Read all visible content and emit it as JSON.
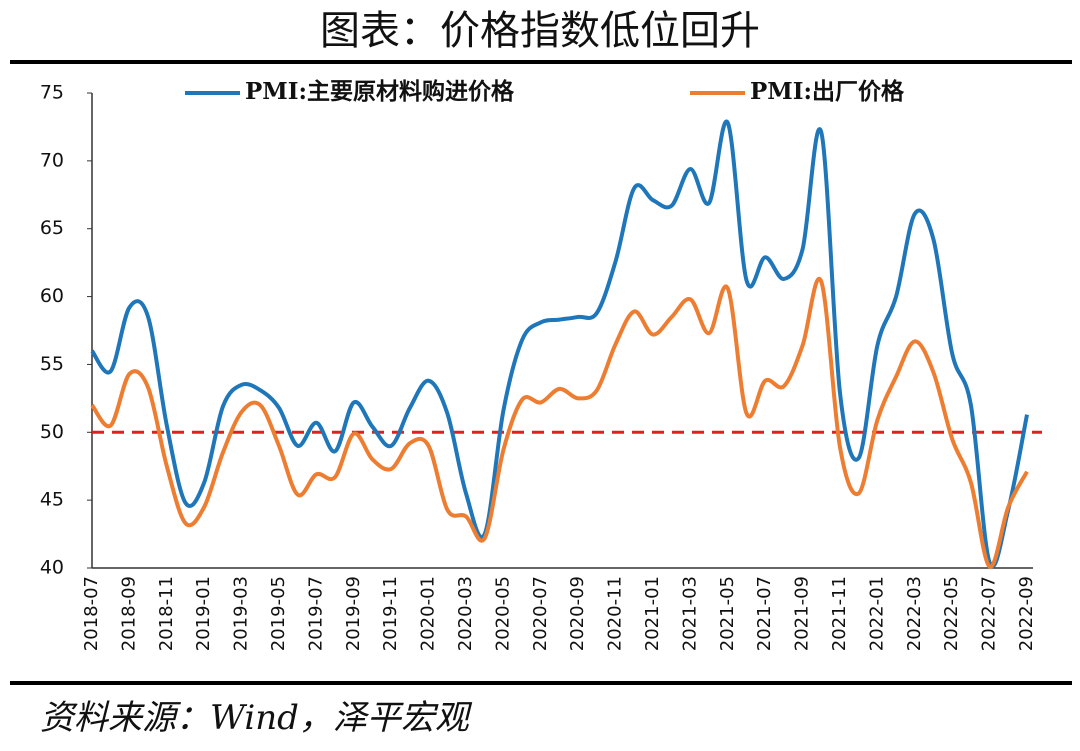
{
  "chart_data": {
    "type": "line",
    "title": "图表：价格指数低位回升",
    "source": "资料来源：Wind，泽平宏观",
    "categories": [
      "2018-07",
      null,
      "2018-09",
      null,
      "2018-11",
      null,
      "2019-01",
      null,
      "2019-03",
      null,
      "2019-05",
      null,
      "2019-07",
      null,
      "2019-09",
      null,
      "2019-11",
      null,
      "2020-01",
      null,
      "2020-03",
      null,
      "2020-05",
      null,
      "2020-07",
      null,
      "2020-09",
      null,
      "2020-11",
      null,
      "2021-01",
      null,
      "2021-03",
      null,
      "2021-05",
      null,
      "2021-07",
      null,
      "2021-09",
      null,
      "2021-11",
      null,
      "2022-01",
      null,
      "2022-03",
      null,
      "2022-05",
      null,
      "2022-07",
      null,
      "2022-09"
    ],
    "series": [
      {
        "name": "PMI:主要原材料购进价格",
        "color": "#1f77b9",
        "values": [
          56.0,
          54.5,
          59.2,
          58.5,
          50.5,
          44.8,
          46.3,
          51.9,
          53.5,
          53.1,
          51.8,
          49.0,
          50.7,
          48.6,
          52.2,
          50.4,
          49.0,
          51.8,
          53.8,
          51.4,
          45.5,
          42.5,
          51.6,
          56.8,
          58.1,
          58.3,
          58.5,
          58.8,
          62.6,
          68.0,
          67.1,
          66.7,
          69.4,
          66.9,
          72.8,
          61.2,
          62.9,
          61.3,
          63.5,
          72.1,
          52.9,
          48.1,
          56.4,
          60.0,
          66.1,
          64.2,
          55.8,
          52.0,
          40.4,
          44.3,
          51.3
        ]
      },
      {
        "name": "PMI:出厂价格",
        "color": "#ed7d31",
        "values": [
          52.0,
          50.5,
          54.3,
          53.3,
          47.5,
          43.3,
          44.5,
          48.5,
          51.5,
          52.0,
          49.0,
          45.4,
          46.9,
          46.7,
          49.9,
          48.0,
          47.3,
          49.2,
          49.0,
          44.3,
          43.8,
          42.2,
          48.7,
          52.4,
          52.2,
          53.2,
          52.5,
          53.1,
          56.5,
          58.9,
          57.2,
          58.5,
          59.8,
          57.3,
          60.6,
          51.4,
          53.8,
          53.4,
          56.4,
          61.1,
          48.9,
          45.5,
          50.9,
          54.1,
          56.7,
          54.4,
          49.5,
          46.3,
          40.1,
          44.5,
          47.1
        ]
      }
    ],
    "ylim": [
      40,
      75
    ],
    "yticks": [
      40,
      45,
      50,
      55,
      60,
      65,
      70,
      75
    ],
    "reference_line": {
      "value": 50,
      "color": "#e02020"
    },
    "legend": "top"
  }
}
